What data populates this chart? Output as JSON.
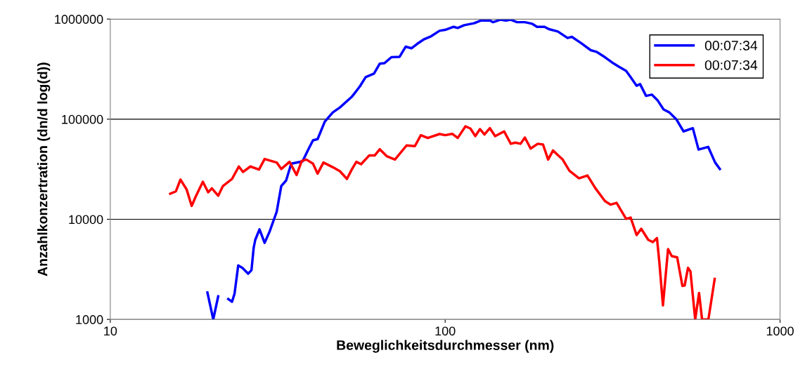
{
  "chart_data": {
    "type": "line",
    "xlabel": "Beweglichkeitsdurchmesser (nm)",
    "ylabel": "Anzahlkonzertration (dn/d log(d))",
    "log": "xy",
    "grid": "y",
    "legend": "top right",
    "marker": "none",
    "line_style": "solid",
    "xlim": [
      10,
      1000
    ],
    "xticks": [
      10,
      100,
      1000
    ],
    "ylim": [
      1000,
      1000000
    ],
    "yticks": [
      1000,
      10000,
      100000,
      1000000
    ],
    "series": [
      {
        "name": "00:07:34",
        "color": "#0000ff",
        "x": [
          19.5,
          20.3,
          21.0,
          21.8,
          22.5,
          23.1,
          23.5,
          24.1,
          24.8,
          25.8,
          26.4,
          26.8,
          27.1,
          27.9,
          28.9,
          29.9,
          31.4,
          32.4,
          33.5,
          34.7,
          37.5,
          39.0,
          40.3,
          41.6,
          43.7,
          46.2,
          48.5,
          52.6,
          55.6,
          57.9,
          61.3,
          63.8,
          65.9,
          69.1,
          73.1,
          76.2,
          79.3,
          82.5,
          86.6,
          90.9,
          96.2,
          100,
          106,
          109,
          114,
          122,
          128,
          136,
          139,
          146,
          152,
          157,
          164,
          173,
          182,
          188,
          198,
          204,
          217,
          232,
          239,
          255,
          272,
          283,
          300,
          315,
          330,
          347,
          358,
          373,
          382,
          398,
          414,
          431,
          449,
          467,
          490,
          515,
          549,
          571,
          610,
          640,
          661
        ],
        "values": [
          1858,
          1000,
          1698,
          null,
          1600,
          1500,
          1810,
          3460,
          3270,
          2860,
          3100,
          5180,
          6240,
          7940,
          5820,
          7530,
          11900,
          21500,
          24400,
          35900,
          37900,
          49700,
          61500,
          63200,
          94600,
          117000,
          131000,
          167000,
          212000,
          263000,
          285000,
          359000,
          363000,
          416000,
          420000,
          530000,
          511000,
          565000,
          630000,
          675000,
          764000,
          780000,
          837000,
          815000,
          869000,
          908000,
          968000,
          968000,
          931000,
          985000,
          968000,
          985000,
          931000,
          931000,
          897000,
          837000,
          837000,
          793000,
          752000,
          647000,
          664000,
          574000,
          489000,
          471000,
          416000,
          369000,
          335000,
          304000,
          263000,
          216000,
          224000,
          171000,
          176000,
          154000,
          125000,
          117000,
          99800,
          75500,
          81300,
          49700,
          52900,
          36900,
          31800
        ]
      },
      {
        "name": "00:07:34",
        "color": "#ff0000",
        "x": [
          15.1,
          15.7,
          16.2,
          16.9,
          17.5,
          18.0,
          18.9,
          19.6,
          20.1,
          21.0,
          21.7,
          23.1,
          24.2,
          24.9,
          26.2,
          27.8,
          28.9,
          31.4,
          32.4,
          34.3,
          36.0,
          37.3,
          38.5,
          40.3,
          41.6,
          43.3,
          46.2,
          48.5,
          50.9,
          52.6,
          54.3,
          56.1,
          59.3,
          61.6,
          63.8,
          66.9,
          70.8,
          76.7,
          81.2,
          84.6,
          88.7,
          96.2,
          100,
          105,
          109,
          115,
          119,
          123,
          127,
          131,
          136,
          141,
          150,
          157,
          162,
          168,
          173,
          180,
          189,
          196,
          203,
          210,
          217,
          224,
          235,
          251,
          266,
          281,
          300,
          312,
          325,
          347,
          358,
          373,
          385,
          404,
          417,
          429,
          436,
          447,
          463,
          475,
          493,
          511,
          519,
          531,
          540,
          558,
          573,
          585,
          611,
          638
        ],
        "values": [
          18000,
          19000,
          24900,
          19900,
          13600,
          16900,
          23700,
          18600,
          20400,
          17200,
          21500,
          25300,
          33700,
          29700,
          33700,
          31400,
          40000,
          36900,
          31800,
          37500,
          27700,
          38300,
          39500,
          35900,
          28600,
          36900,
          33100,
          30200,
          25300,
          31400,
          37500,
          35500,
          43400,
          43400,
          50100,
          42700,
          39500,
          54700,
          53800,
          69200,
          64900,
          71100,
          69200,
          71400,
          64900,
          84900,
          80500,
          67800,
          79600,
          70300,
          81300,
          67800,
          75500,
          56800,
          58300,
          56800,
          65600,
          50900,
          56800,
          55800,
          39500,
          48700,
          43800,
          39800,
          30500,
          25700,
          27400,
          20400,
          15200,
          14000,
          14600,
          10100,
          10400,
          6950,
          8040,
          6240,
          5920,
          6490,
          3750,
          1380,
          5040,
          4290,
          4170,
          2160,
          2180,
          3270,
          3020,
          1000,
          1840,
          1000,
          1000,
          2540
        ]
      }
    ]
  }
}
